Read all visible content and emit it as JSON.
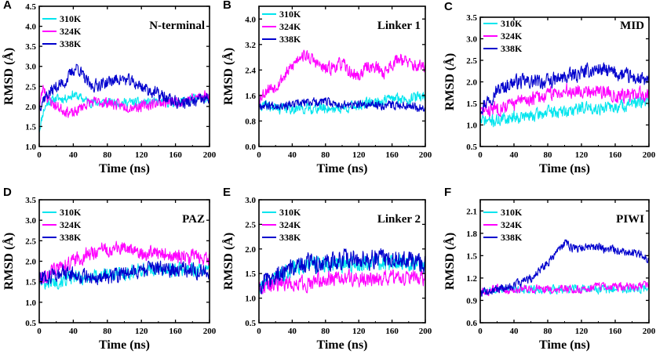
{
  "chart_data": [
    {
      "letter": "A",
      "type": "line",
      "title": "N-terminal",
      "xlabel": "Time (ns)",
      "ylabel": "RMSD (Å)",
      "xlim": [
        0,
        200
      ],
      "ylim": [
        1.0,
        4.5
      ],
      "xticks": [
        "0",
        "40",
        "80",
        "120",
        "160",
        "200"
      ],
      "yticks": [
        "1.0",
        "1.5",
        "2.0",
        "2.5",
        "3.0",
        "3.5",
        "4.0",
        "4.5"
      ],
      "legend_position": "top-left",
      "series": [
        {
          "name": "310K",
          "color": "#00e5ee",
          "noise": 0.1,
          "seed": 11,
          "x": [
            0,
            5,
            10,
            20,
            30,
            40,
            50,
            60,
            80,
            100,
            120,
            140,
            160,
            180,
            200
          ],
          "y": [
            1.4,
            1.9,
            2.1,
            2.2,
            2.2,
            2.3,
            2.2,
            2.1,
            2.1,
            2.1,
            2.1,
            2.1,
            2.1,
            2.2,
            2.2
          ]
        },
        {
          "name": "324K",
          "color": "#ff00ff",
          "noise": 0.12,
          "seed": 23,
          "x": [
            0,
            5,
            10,
            20,
            30,
            40,
            50,
            60,
            80,
            100,
            120,
            140,
            160,
            180,
            200
          ],
          "y": [
            2.0,
            2.5,
            2.2,
            2.0,
            1.9,
            1.8,
            2.0,
            2.1,
            2.1,
            2.0,
            2.0,
            2.1,
            2.1,
            2.2,
            2.3
          ]
        },
        {
          "name": "338K",
          "color": "#0000cd",
          "noise": 0.14,
          "seed": 37,
          "x": [
            0,
            5,
            10,
            20,
            30,
            40,
            45,
            50,
            60,
            80,
            95,
            110,
            120,
            140,
            160,
            180,
            200
          ],
          "y": [
            2.0,
            2.2,
            2.3,
            2.5,
            2.6,
            2.9,
            3.0,
            2.8,
            2.5,
            2.6,
            2.7,
            2.6,
            2.5,
            2.3,
            2.1,
            2.1,
            2.2
          ]
        }
      ]
    },
    {
      "letter": "B",
      "type": "line",
      "title": "Linker 1",
      "xlabel": "Time (ns)",
      "ylabel": "RMSD (Å)",
      "xlim": [
        0,
        200
      ],
      "ylim": [
        0.0,
        4.4
      ],
      "xticks": [
        "0",
        "40",
        "80",
        "120",
        "160",
        "200"
      ],
      "yticks": [
        "0.0",
        "0.8",
        "1.6",
        "2.4",
        "3.2",
        "4.0"
      ],
      "ytick_values": [
        0.0,
        0.8,
        1.6,
        2.4,
        3.2,
        4.0
      ],
      "legend_position": "top-left",
      "series": [
        {
          "name": "310K",
          "color": "#00e5ee",
          "noise": 0.15,
          "seed": 41,
          "x": [
            0,
            20,
            40,
            60,
            80,
            100,
            120,
            140,
            160,
            180,
            200
          ],
          "y": [
            1.3,
            1.2,
            1.2,
            1.2,
            1.2,
            1.2,
            1.3,
            1.4,
            1.5,
            1.5,
            1.6
          ]
        },
        {
          "name": "324K",
          "color": "#ff00ff",
          "noise": 0.18,
          "seed": 53,
          "x": [
            0,
            10,
            20,
            30,
            40,
            50,
            60,
            70,
            80,
            90,
            100,
            110,
            120,
            130,
            140,
            150,
            160,
            170,
            180,
            190,
            200
          ],
          "y": [
            1.5,
            1.8,
            1.9,
            2.2,
            2.5,
            2.9,
            2.8,
            2.6,
            2.4,
            2.5,
            2.6,
            2.3,
            2.2,
            2.5,
            2.5,
            2.3,
            2.6,
            2.8,
            2.6,
            2.5,
            2.5
          ]
        },
        {
          "name": "338K",
          "color": "#0000cd",
          "noise": 0.12,
          "seed": 67,
          "x": [
            0,
            20,
            40,
            60,
            80,
            100,
            120,
            140,
            160,
            180,
            200
          ],
          "y": [
            1.3,
            1.3,
            1.3,
            1.4,
            1.4,
            1.3,
            1.3,
            1.3,
            1.3,
            1.3,
            1.2
          ]
        }
      ]
    },
    {
      "letter": "C",
      "type": "line",
      "title": "MID",
      "xlabel": "Time (ns)",
      "ylabel": "RMSD (Å)",
      "xlim": [
        0,
        200
      ],
      "ylim": [
        0.5,
        3.5
      ],
      "xticks": [
        "0",
        "40",
        "80",
        "120",
        "160",
        "200"
      ],
      "yticks": [
        "0.5",
        "1.0",
        "1.5",
        "2.0",
        "2.5",
        "3.0",
        "3.5"
      ],
      "legend_position": "top-left",
      "series": [
        {
          "name": "310K",
          "color": "#00e5ee",
          "noise": 0.13,
          "seed": 71,
          "x": [
            0,
            20,
            40,
            60,
            80,
            100,
            120,
            140,
            160,
            180,
            200
          ],
          "y": [
            1.1,
            1.1,
            1.2,
            1.2,
            1.3,
            1.3,
            1.4,
            1.4,
            1.4,
            1.5,
            1.5
          ]
        },
        {
          "name": "324K",
          "color": "#ff00ff",
          "noise": 0.15,
          "seed": 83,
          "x": [
            0,
            20,
            40,
            60,
            80,
            100,
            120,
            140,
            160,
            180,
            200
          ],
          "y": [
            1.3,
            1.4,
            1.5,
            1.6,
            1.7,
            1.8,
            1.8,
            1.8,
            1.7,
            1.7,
            1.7
          ]
        },
        {
          "name": "338K",
          "color": "#0000cd",
          "noise": 0.15,
          "seed": 97,
          "x": [
            0,
            10,
            20,
            40,
            60,
            80,
            100,
            120,
            140,
            160,
            180,
            200
          ],
          "y": [
            1.4,
            1.6,
            1.8,
            2.0,
            2.0,
            2.0,
            2.1,
            2.2,
            2.3,
            2.2,
            2.1,
            2.0
          ]
        }
      ]
    },
    {
      "letter": "D",
      "type": "line",
      "title": "PAZ",
      "xlabel": "Time (ns)",
      "ylabel": "RMSD (Å)",
      "xlim": [
        0,
        200
      ],
      "ylim": [
        0.5,
        3.5
      ],
      "xticks": [
        "0",
        "40",
        "80",
        "120",
        "160",
        "200"
      ],
      "yticks": [
        "0.5",
        "1.0",
        "1.5",
        "2.0",
        "2.5",
        "3.0",
        "3.5"
      ],
      "legend_position": "top-left",
      "series": [
        {
          "name": "310K",
          "color": "#00e5ee",
          "noise": 0.15,
          "seed": 101,
          "x": [
            0,
            20,
            40,
            60,
            80,
            100,
            120,
            140,
            160,
            180,
            200
          ],
          "y": [
            1.5,
            1.5,
            1.6,
            1.6,
            1.7,
            1.7,
            1.8,
            1.8,
            1.8,
            1.8,
            1.8
          ]
        },
        {
          "name": "324K",
          "color": "#ff00ff",
          "noise": 0.16,
          "seed": 113,
          "x": [
            0,
            20,
            40,
            60,
            80,
            100,
            120,
            140,
            160,
            180,
            200
          ],
          "y": [
            1.6,
            1.8,
            2.0,
            2.2,
            2.3,
            2.3,
            2.2,
            2.2,
            2.1,
            2.1,
            2.1
          ]
        },
        {
          "name": "338K",
          "color": "#0000cd",
          "noise": 0.17,
          "seed": 127,
          "x": [
            0,
            20,
            40,
            60,
            80,
            100,
            120,
            140,
            160,
            180,
            200
          ],
          "y": [
            1.6,
            1.7,
            1.7,
            1.6,
            1.6,
            1.7,
            1.8,
            1.8,
            1.8,
            1.8,
            1.7
          ]
        }
      ]
    },
    {
      "letter": "E",
      "type": "line",
      "title": "Linker 2",
      "xlabel": "Time (ns)",
      "ylabel": "RMSD (Å)",
      "xlim": [
        0,
        200
      ],
      "ylim": [
        0.5,
        3.0
      ],
      "xticks": [
        "0",
        "40",
        "80",
        "120",
        "160",
        "200"
      ],
      "yticks": [
        "0.5",
        "1.0",
        "1.5",
        "2.0",
        "2.5",
        "3.0"
      ],
      "legend_position": "top-left",
      "series": [
        {
          "name": "310K",
          "color": "#00e5ee",
          "noise": 0.15,
          "seed": 131,
          "x": [
            0,
            20,
            40,
            60,
            80,
            100,
            120,
            140,
            160,
            180,
            200
          ],
          "y": [
            1.2,
            1.4,
            1.6,
            1.7,
            1.7,
            1.7,
            1.7,
            1.7,
            1.7,
            1.7,
            1.7
          ]
        },
        {
          "name": "324K",
          "color": "#ff00ff",
          "noise": 0.14,
          "seed": 149,
          "x": [
            0,
            20,
            40,
            60,
            80,
            100,
            120,
            140,
            160,
            180,
            200
          ],
          "y": [
            1.2,
            1.3,
            1.3,
            1.3,
            1.4,
            1.4,
            1.4,
            1.4,
            1.4,
            1.4,
            1.4
          ]
        },
        {
          "name": "338K",
          "color": "#0000cd",
          "noise": 0.17,
          "seed": 157,
          "x": [
            0,
            20,
            40,
            60,
            80,
            100,
            120,
            140,
            160,
            180,
            200
          ],
          "y": [
            1.3,
            1.5,
            1.6,
            1.7,
            1.7,
            1.8,
            1.8,
            1.8,
            1.8,
            1.8,
            1.7
          ]
        }
      ]
    },
    {
      "letter": "F",
      "type": "line",
      "title": "PIWI",
      "xlabel": "Time (ns)",
      "ylabel": "RMSD (Å)",
      "xlim": [
        0,
        200
      ],
      "ylim": [
        0.6,
        2.25
      ],
      "xticks": [
        "0",
        "40",
        "80",
        "120",
        "160",
        "200"
      ],
      "yticks": [
        "0.6",
        "0.9",
        "1.2",
        "1.5",
        "1.8",
        "2.1"
      ],
      "ytick_values": [
        0.6,
        0.9,
        1.2,
        1.5,
        1.8,
        2.1
      ],
      "legend_position": "top-left",
      "series": [
        {
          "name": "310K",
          "color": "#00e5ee",
          "noise": 0.05,
          "seed": 163,
          "x": [
            0,
            20,
            40,
            60,
            80,
            100,
            120,
            140,
            160,
            180,
            200
          ],
          "y": [
            1.0,
            1.05,
            1.05,
            1.05,
            1.05,
            1.05,
            1.05,
            1.05,
            1.05,
            1.05,
            1.05
          ]
        },
        {
          "name": "324K",
          "color": "#ff00ff",
          "noise": 0.05,
          "seed": 173,
          "x": [
            0,
            20,
            40,
            60,
            80,
            100,
            120,
            140,
            160,
            180,
            200
          ],
          "y": [
            1.0,
            1.05,
            1.05,
            1.05,
            1.05,
            1.05,
            1.05,
            1.08,
            1.08,
            1.08,
            1.1
          ]
        },
        {
          "name": "338K",
          "color": "#0000cd",
          "noise": 0.05,
          "seed": 181,
          "x": [
            0,
            20,
            40,
            60,
            70,
            80,
            90,
            100,
            110,
            120,
            130,
            140,
            150,
            160,
            170,
            180,
            190,
            200
          ],
          "y": [
            1.0,
            1.05,
            1.1,
            1.2,
            1.3,
            1.4,
            1.55,
            1.68,
            1.6,
            1.6,
            1.62,
            1.62,
            1.58,
            1.58,
            1.55,
            1.55,
            1.52,
            1.45
          ]
        }
      ]
    }
  ]
}
